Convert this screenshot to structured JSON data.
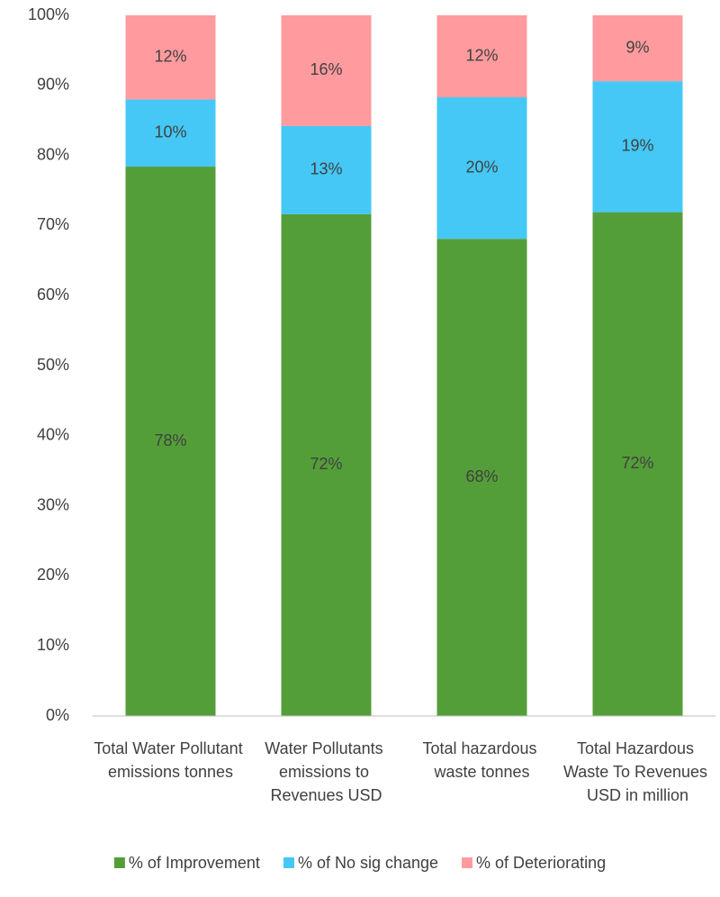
{
  "chart_data": {
    "type": "stacked_bar",
    "categories": [
      "Total Water Pollutant emissions tonnes",
      "Water Pollutants emissions to Revenues USD",
      "Total hazardous waste tonnes",
      "Total Hazardous Waste To Revenues USD in million"
    ],
    "series": [
      {
        "name": "% of Improvement",
        "color": "#549e39",
        "values": [
          78.4,
          71.6,
          68.1,
          71.9
        ],
        "value_labels": [
          "78%",
          "72%",
          "68%",
          "72%"
        ]
      },
      {
        "name": "% of No sig change",
        "color": "#45c8f5",
        "values": [
          9.6,
          12.6,
          20.2,
          18.7
        ],
        "value_labels": [
          "10%",
          "13%",
          "20%",
          "19%"
        ]
      },
      {
        "name": "% of Deteriorating",
        "color": "#ff9b9e",
        "values": [
          12.0,
          15.8,
          11.7,
          9.4
        ],
        "value_labels": [
          "12%",
          "16%",
          "12%",
          "9%"
        ]
      }
    ],
    "ylim": [
      0,
      100
    ],
    "yticks": [
      {
        "value": 0,
        "label": "0%"
      },
      {
        "value": 10,
        "label": "10%"
      },
      {
        "value": 20,
        "label": "20%"
      },
      {
        "value": 30,
        "label": "30%"
      },
      {
        "value": 40,
        "label": "40%"
      },
      {
        "value": 50,
        "label": "50%"
      },
      {
        "value": 60,
        "label": "60%"
      },
      {
        "value": 70,
        "label": "70%"
      },
      {
        "value": 80,
        "label": "80%"
      },
      {
        "value": 90,
        "label": "90%"
      },
      {
        "value": 100,
        "label": "100%"
      }
    ],
    "grid": false,
    "legend": "bottom"
  }
}
